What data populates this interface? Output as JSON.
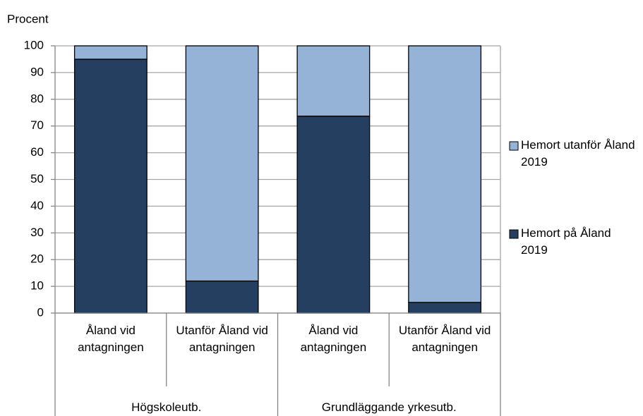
{
  "chart_data": {
    "type": "stacked_bar",
    "ylabel": "Procent",
    "categories": [
      "Åland vid antagningen",
      "Utanför Åland vid antagningen",
      "Åland vid antagningen",
      "Utanför Åland vid antagningen"
    ],
    "groups": [
      "Högskoleutb.",
      "Grundläggande yrkesutb."
    ],
    "series": [
      {
        "name": "Hemort på Åland 2019",
        "color": "#243f60",
        "values": [
          95,
          12,
          73.7,
          4
        ]
      },
      {
        "name": "Hemort utanför Åland 2019",
        "color": "#95b3d7",
        "values": [
          5,
          88,
          26.3,
          96
        ]
      }
    ],
    "ylim": [
      0,
      100
    ],
    "yticks": [
      0,
      10,
      20,
      30,
      40,
      50,
      60,
      70,
      80,
      90,
      100
    ],
    "grid": true,
    "legend": "right"
  }
}
